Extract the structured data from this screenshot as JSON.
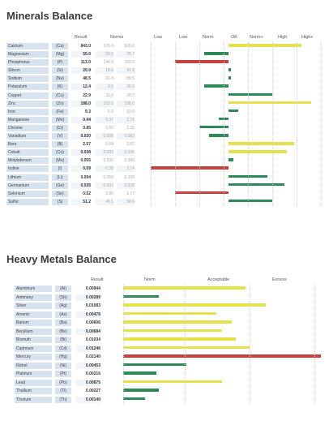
{
  "minerals": {
    "title": "Minerals Balance",
    "columns": {
      "result": "Result",
      "norms": "Norms",
      "scale": [
        "Low",
        "Low",
        "Norm",
        "OK",
        "Norm+",
        "High",
        "High+"
      ]
    },
    "rows": [
      {
        "name": "Calcium",
        "symbol": "(Ca)",
        "result": "843.0",
        "norm_low": "575.0",
        "norm_high": "926.0",
        "level": 6.2,
        "status": "yellow"
      },
      {
        "name": "Magnesium",
        "symbol": "(Mg)",
        "result": "55.0",
        "norm_low": "50.5",
        "norm_high": "78.7",
        "level": 2.2,
        "status": "green"
      },
      {
        "name": "Phosphorus",
        "symbol": "(P)",
        "result": "113.0",
        "norm_low": "144.0",
        "norm_high": "159.0",
        "level": 1.0,
        "status": "red"
      },
      {
        "name": "Silicon",
        "symbol": "(Si)",
        "result": "20.9",
        "norm_low": "18.0",
        "norm_high": "41.8",
        "level": 3.3,
        "status": "green"
      },
      {
        "name": "Sodium",
        "symbol": "(Na)",
        "result": "48.5",
        "norm_low": "21.0",
        "norm_high": "89.5",
        "level": 3.3,
        "status": "green"
      },
      {
        "name": "Potassium",
        "symbol": "(K)",
        "result": "12.4",
        "norm_low": "9.5",
        "norm_high": "35.0",
        "level": 2.2,
        "status": "green"
      },
      {
        "name": "Copper",
        "symbol": "(Cu)",
        "result": "22.9",
        "norm_low": "11.0",
        "norm_high": "28.0",
        "level": 5.0,
        "status": "green"
      },
      {
        "name": "Zinc",
        "symbol": "(Zn)",
        "result": "188.0",
        "norm_low": "155.0",
        "norm_high": "198.0",
        "level": 6.6,
        "status": "yellow"
      },
      {
        "name": "Iron",
        "symbol": "(Fe)",
        "result": "9.3",
        "norm_low": "5.0",
        "norm_high": "15.5",
        "level": 3.6,
        "status": "green"
      },
      {
        "name": "Manganese",
        "symbol": "(Mn)",
        "result": "0.44",
        "norm_low": "0.37",
        "norm_high": "2.76",
        "level": 2.8,
        "status": "green"
      },
      {
        "name": "Chrome",
        "symbol": "(Cr)",
        "result": "0.85",
        "norm_low": "0.87",
        "norm_high": "1.25",
        "level": 2.0,
        "status": "green"
      },
      {
        "name": "Vanadium",
        "symbol": "(V)",
        "result": "0.020",
        "norm_low": "0.008",
        "norm_high": "0.083",
        "level": 2.4,
        "status": "green"
      },
      {
        "name": "Bore",
        "symbol": "(B)",
        "result": "2.57",
        "norm_low": "0.84",
        "norm_high": "2.87",
        "level": 5.9,
        "status": "yellow"
      },
      {
        "name": "Cobalt",
        "symbol": "(Co)",
        "result": "0.038",
        "norm_low": "0.003",
        "norm_high": "0.036",
        "level": 5.6,
        "status": "yellow"
      },
      {
        "name": "Molybdenum",
        "symbol": "(Mo)",
        "result": "0.055",
        "norm_low": "0.030",
        "norm_high": "0.090",
        "level": 3.4,
        "status": "green"
      },
      {
        "name": "Iodine",
        "symbol": "(I)",
        "result": "0.09",
        "norm_low": "0.30",
        "norm_high": "2.14",
        "level": 0.0,
        "status": "red"
      },
      {
        "name": "Lithium",
        "symbol": "(Li)",
        "result": "0.094",
        "norm_low": "0.050",
        "norm_high": "0.150",
        "level": 4.8,
        "status": "green"
      },
      {
        "name": "Germanium",
        "symbol": "(Ge)",
        "result": "0.035",
        "norm_low": "0.003",
        "norm_high": "0.038",
        "level": 5.5,
        "status": "green"
      },
      {
        "name": "Selenium",
        "symbol": "(Se)",
        "result": "0.52",
        "norm_low": "0.85",
        "norm_high": "1.77",
        "level": 1.0,
        "status": "red"
      },
      {
        "name": "Sulfur",
        "symbol": "(S)",
        "result": "51.2",
        "norm_low": "46.1",
        "norm_high": "58.6",
        "level": 5.0,
        "status": "green"
      }
    ]
  },
  "metals": {
    "title": "Heavy Metals Balance",
    "columns": {
      "result": "Result",
      "norm": "Norm",
      "acceptable": "Acceptable",
      "excess": "Excess"
    },
    "rows": [
      {
        "name": "Aluminium",
        "symbol": "(Al)",
        "result": "0.00944",
        "level": 0.62,
        "status": "yellow"
      },
      {
        "name": "Antimony",
        "symbol": "(Sb)",
        "result": "0.00289",
        "level": 0.18,
        "status": "green"
      },
      {
        "name": "Silver",
        "symbol": "(Ag)",
        "result": "0.01083",
        "level": 0.72,
        "status": "yellow"
      },
      {
        "name": "Arsenic",
        "symbol": "(As)",
        "result": "0.00478",
        "level": 0.47,
        "status": "yellow"
      },
      {
        "name": "Barium",
        "symbol": "(Ba)",
        "result": "0.00606",
        "level": 0.55,
        "status": "yellow"
      },
      {
        "name": "Beryllium",
        "symbol": "(Be)",
        "result": "0.00684",
        "level": 0.5,
        "status": "yellow"
      },
      {
        "name": "Bismuth",
        "symbol": "(Bi)",
        "result": "0.01034",
        "level": 0.57,
        "status": "yellow"
      },
      {
        "name": "Cadmium",
        "symbol": "(Cd)",
        "result": "0.01246",
        "level": 0.64,
        "status": "yellow"
      },
      {
        "name": "Mercury",
        "symbol": "(Hg)",
        "result": "0.02140",
        "level": 1.0,
        "status": "red"
      },
      {
        "name": "Nickel",
        "symbol": "(Ni)",
        "result": "0.00453",
        "level": 0.32,
        "status": "green"
      },
      {
        "name": "Platinum",
        "symbol": "(Pt)",
        "result": "0.00216",
        "level": 0.17,
        "status": "green"
      },
      {
        "name": "Lead",
        "symbol": "(Pb)",
        "result": "0.00875",
        "level": 0.5,
        "status": "yellow"
      },
      {
        "name": "Thallium",
        "symbol": "(Tl)",
        "result": "0.00227",
        "level": 0.18,
        "status": "green"
      },
      {
        "name": "Thorium",
        "symbol": "(Th)",
        "result": "0.00140",
        "level": 0.11,
        "status": "green"
      }
    ]
  },
  "colors": {
    "green": "#2e8b57",
    "yellow": "#e6e04a",
    "red": "#c8413f",
    "label_bg": "#d7e3ef"
  }
}
